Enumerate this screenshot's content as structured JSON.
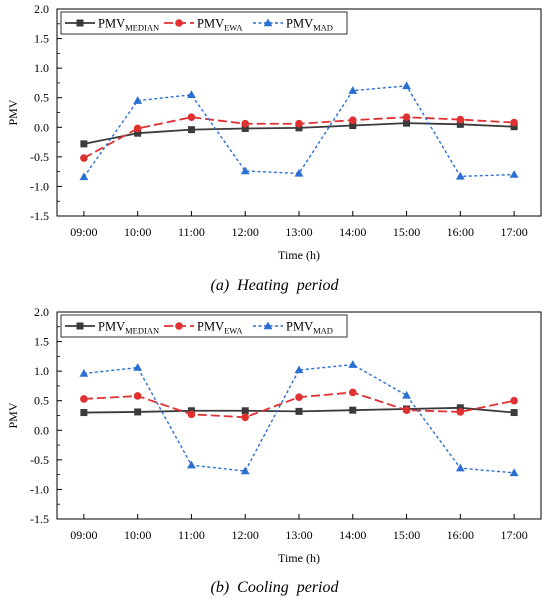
{
  "charts": [
    {
      "caption": {
        "letter": "(a)",
        "text": "Heating  period"
      },
      "chart_data": {
        "type": "line",
        "categories": [
          "09:00",
          "10:00",
          "11:00",
          "12:00",
          "13:00",
          "14:00",
          "15:00",
          "16:00",
          "17:00"
        ],
        "xlabel": "Time (h)",
        "ylabel": "PMV",
        "ylim": [
          -1.5,
          2.0
        ],
        "yticks": [
          "-1.5",
          "-1.0",
          "-0.5",
          "0.0",
          "0.5",
          "1.0",
          "1.5",
          "2.0"
        ],
        "grid": false,
        "legend_position": "top",
        "series": [
          {
            "name": "PMV",
            "sub": "MEDIAN",
            "color": "#3a3a3a",
            "marker": "square",
            "dash": "solid",
            "values": [
              -0.28,
              -0.1,
              -0.04,
              -0.02,
              -0.01,
              0.03,
              0.07,
              0.05,
              0.01
            ]
          },
          {
            "name": "PMV",
            "sub": "EWA",
            "color": "#e03030",
            "marker": "circle",
            "dash": "dashed",
            "values": [
              -0.52,
              -0.02,
              0.17,
              0.06,
              0.06,
              0.12,
              0.17,
              0.13,
              0.08
            ]
          },
          {
            "name": "PMV",
            "sub": "MAD",
            "color": "#2a6fd1",
            "marker": "triangle",
            "dash": "dotted",
            "values": [
              -0.84,
              0.45,
              0.55,
              -0.74,
              -0.78,
              0.62,
              0.7,
              -0.83,
              -0.8
            ]
          }
        ]
      }
    },
    {
      "caption": {
        "letter": "(b)",
        "text": "Cooling  period"
      },
      "chart_data": {
        "type": "line",
        "categories": [
          "09:00",
          "10:00",
          "11:00",
          "12:00",
          "13:00",
          "14:00",
          "15:00",
          "16:00",
          "17:00"
        ],
        "xlabel": "Time (h)",
        "ylabel": "PMV",
        "ylim": [
          -1.5,
          2.0
        ],
        "yticks": [
          "-1.5",
          "-1.0",
          "-0.5",
          "0.0",
          "0.5",
          "1.0",
          "1.5",
          "2.0"
        ],
        "grid": false,
        "legend_position": "top",
        "series": [
          {
            "name": "PMV",
            "sub": "MEDIAN",
            "color": "#3a3a3a",
            "marker": "square",
            "dash": "solid",
            "values": [
              0.3,
              0.31,
              0.33,
              0.33,
              0.32,
              0.34,
              0.36,
              0.38,
              0.3
            ]
          },
          {
            "name": "PMV",
            "sub": "EWA",
            "color": "#e03030",
            "marker": "circle",
            "dash": "dashed",
            "values": [
              0.53,
              0.58,
              0.27,
              0.22,
              0.56,
              0.64,
              0.34,
              0.31,
              0.5
            ]
          },
          {
            "name": "PMV",
            "sub": "MAD",
            "color": "#2a6fd1",
            "marker": "triangle",
            "dash": "dotted",
            "values": [
              0.96,
              1.06,
              -0.59,
              -0.69,
              1.02,
              1.11,
              0.59,
              -0.64,
              -0.72
            ]
          }
        ]
      }
    }
  ]
}
